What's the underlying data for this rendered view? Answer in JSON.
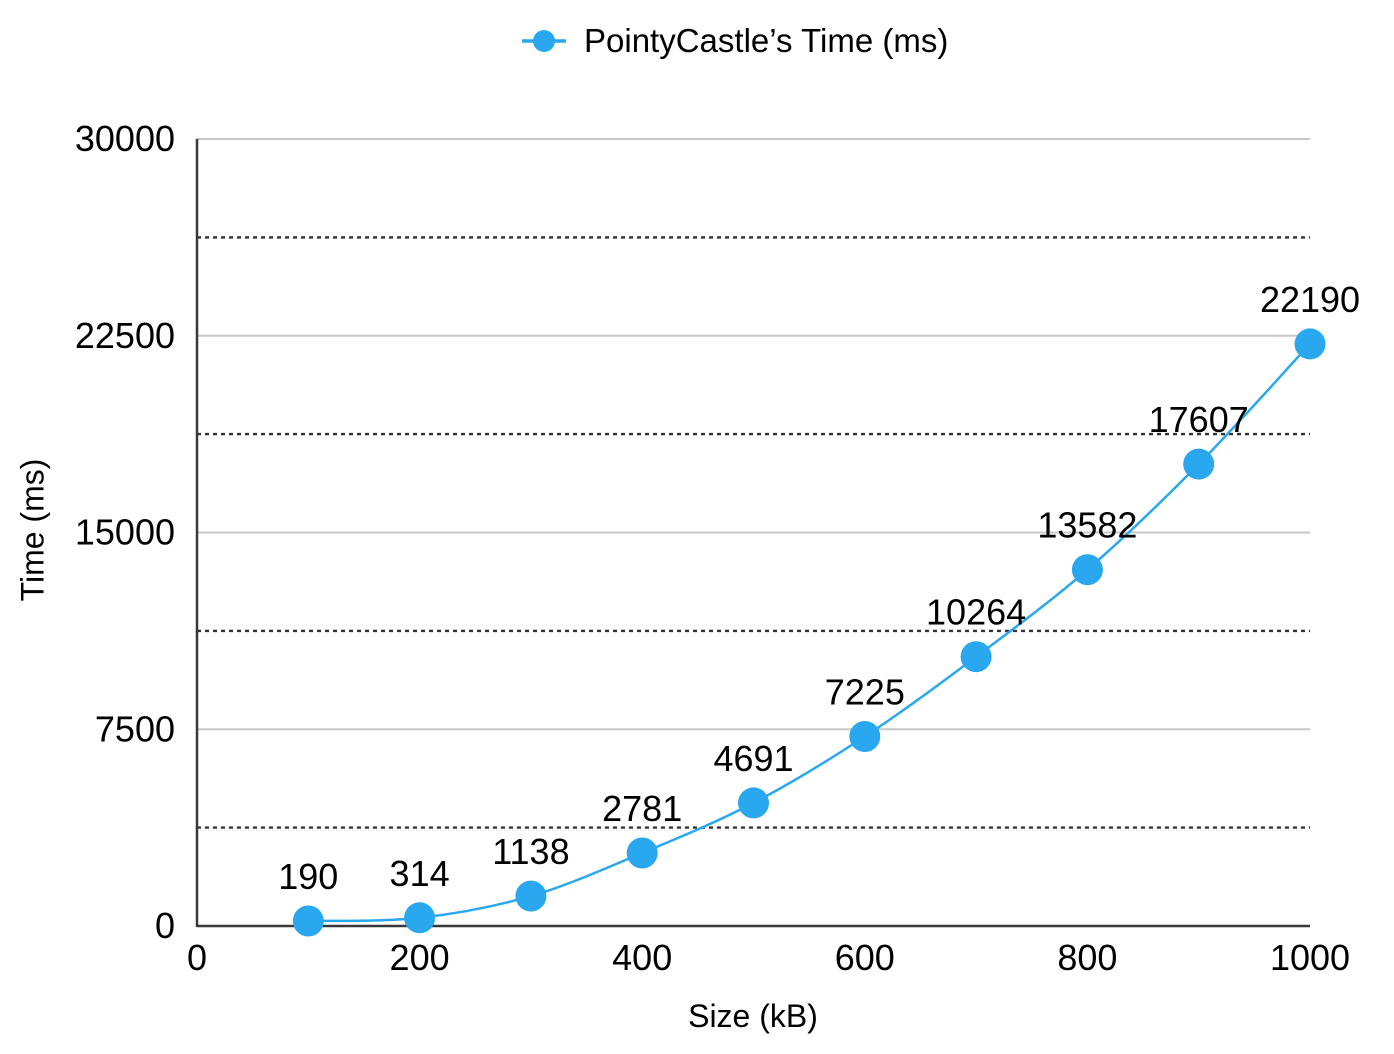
{
  "page": {
    "background": "#ffffff"
  },
  "legend": {
    "label": "PointyCastle’s Time (ms)",
    "marker_color": "#29A8F0"
  },
  "chart_data": {
    "type": "line",
    "title": "",
    "series": [
      {
        "name": "PointyCastle’s Time (ms)",
        "x": [
          100,
          200,
          300,
          400,
          500,
          600,
          700,
          800,
          900,
          1000
        ],
        "y": [
          190,
          314,
          1138,
          2781,
          4691,
          7225,
          10264,
          13582,
          17607,
          22190
        ]
      }
    ],
    "xlabel": "Size (kB)",
    "ylabel": "Time (ms)",
    "xlim": [
      0,
      1000
    ],
    "ylim": [
      0,
      30000
    ],
    "x_ticks": [
      0,
      200,
      400,
      600,
      800,
      1000
    ],
    "y_ticks": [
      0,
      7500,
      15000,
      22500,
      30000
    ],
    "minor_y_gridlines": [
      3750,
      11250,
      18750,
      26250
    ],
    "data_labels_visible": true,
    "legend_position": "top-center",
    "grid": "horizontal-only",
    "colors": {
      "line": "#29A8F0",
      "marker": "#29A8F0",
      "major_grid": "#C7C7C7",
      "minor_grid": "#333333",
      "axis": "#383838",
      "text": "#000000"
    }
  }
}
